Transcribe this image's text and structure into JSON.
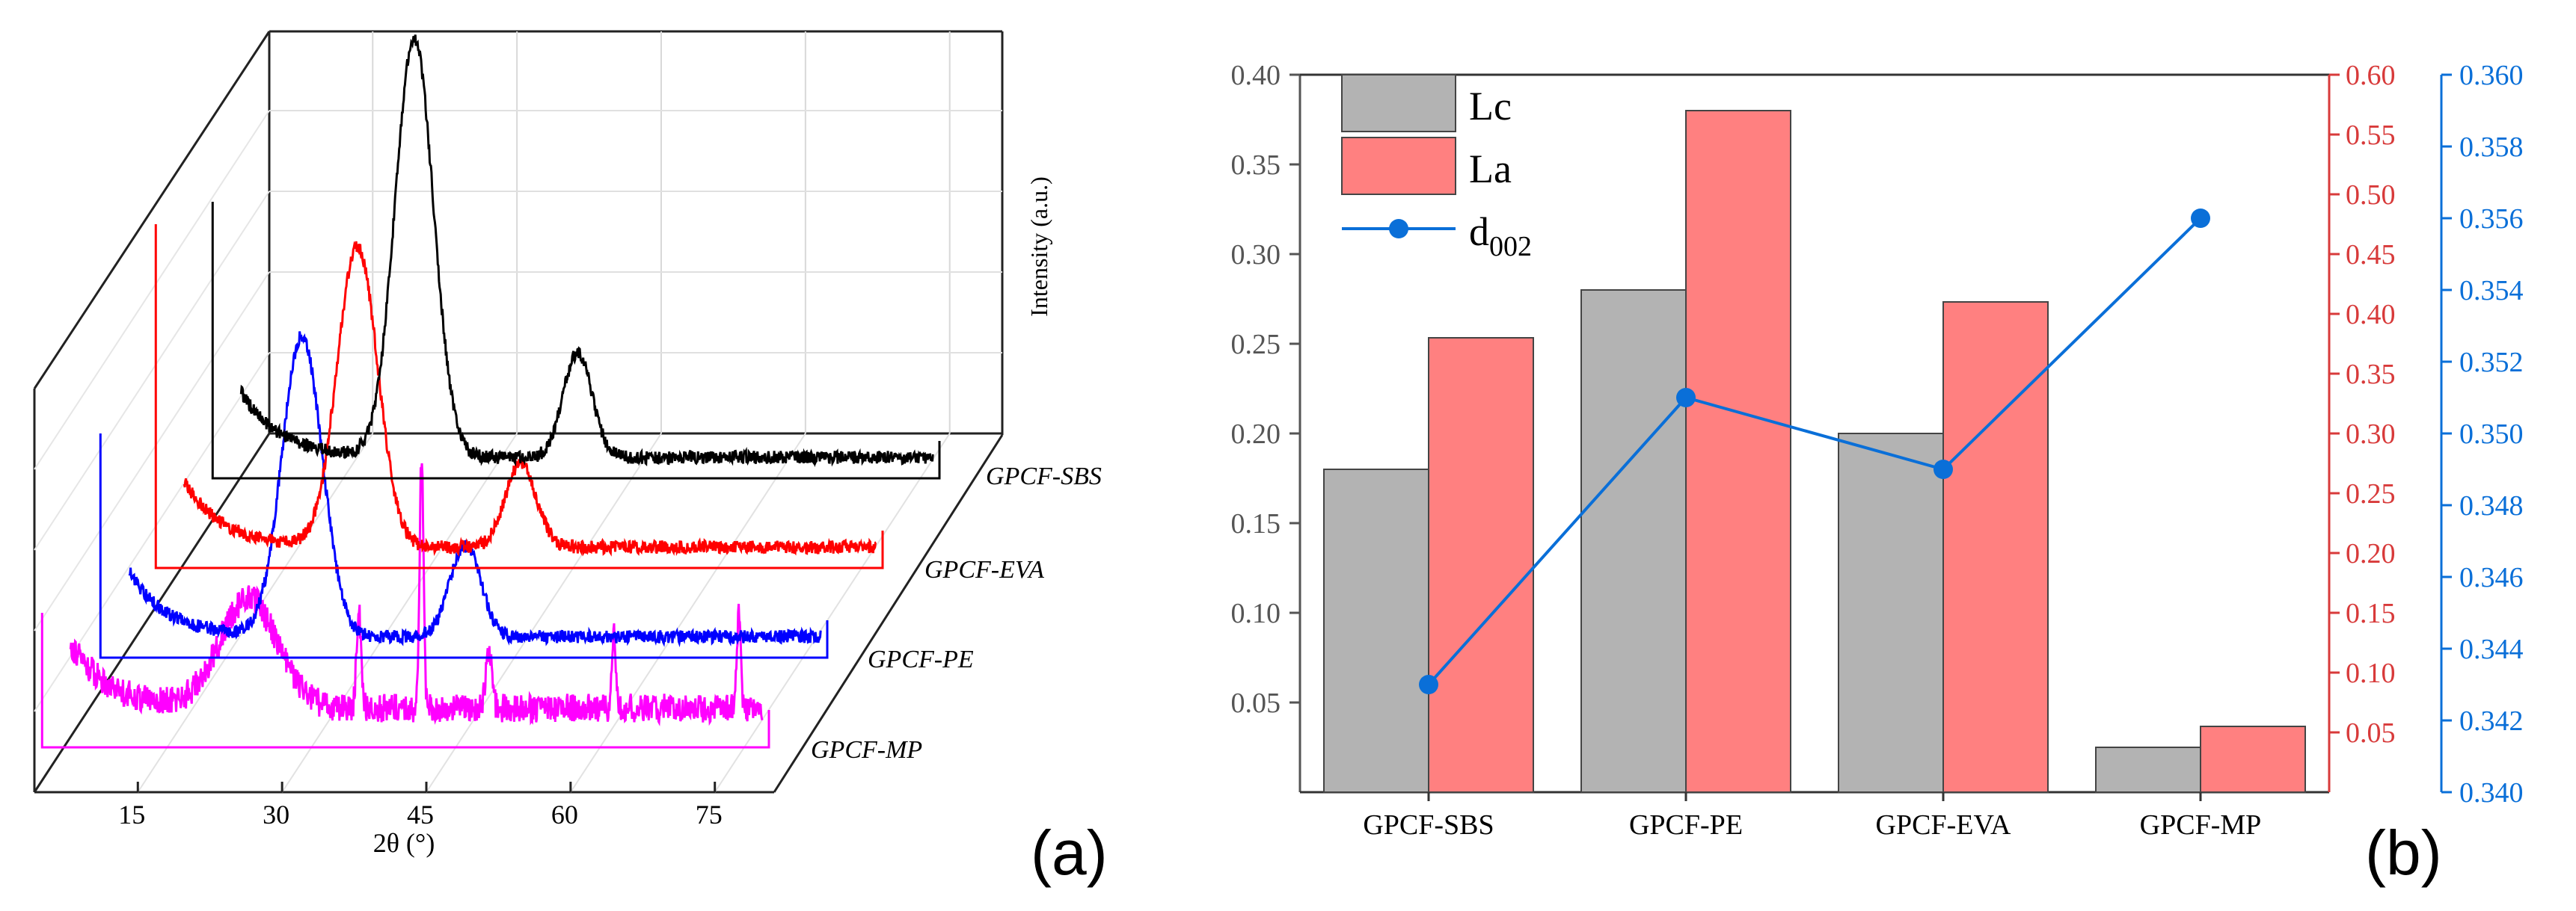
{
  "panel_a_label": "(a)",
  "panel_b_label": "(b)",
  "chart_data": [
    {
      "panel": "(a)",
      "type": "line",
      "title": "",
      "xlabel": "2θ (°)",
      "ylabel": "Intensity (a.u.)",
      "x_ticks": [
        15,
        30,
        45,
        60,
        75
      ],
      "xlim": [
        5,
        85
      ],
      "series": [
        {
          "name": "GPCF-MP",
          "color": "#ff00ff",
          "base": 0.15,
          "noise": 0.055,
          "peaks": [
            [
              26.5,
              0.42,
              3.0
            ],
            [
              38,
              0.35,
              0.25
            ],
            [
              44.5,
              0.95,
              0.2
            ],
            [
              51.5,
              0.22,
              0.3
            ],
            [
              64.5,
              0.28,
              0.2
            ],
            [
              77.5,
              0.38,
              0.2
            ]
          ]
        },
        {
          "name": "GPCF-PE",
          "color": "#0000ff",
          "base": 0.08,
          "noise": 0.025,
          "peaks": [
            [
              26,
              1.15,
              2.1
            ],
            [
              43,
              0.35,
              1.6
            ]
          ]
        },
        {
          "name": "GPCF-EVA",
          "color": "#ff0000",
          "base": 0.08,
          "noise": 0.025,
          "peaks": [
            [
              26,
              1.15,
              2.1
            ],
            [
              43,
              0.32,
              1.6
            ]
          ]
        },
        {
          "name": "GPCF-SBS",
          "color": "#000000",
          "base": 0.08,
          "noise": 0.025,
          "peaks": [
            [
              26,
              1.6,
              2.0
            ],
            [
              43,
              0.4,
              1.5
            ]
          ]
        }
      ]
    },
    {
      "panel": "(b)",
      "type": "bar",
      "title": "",
      "categories": [
        "GPCF-SBS",
        "GPCF-PE",
        "GPCF-EVA",
        "GPCF-MP"
      ],
      "series": [
        {
          "name": "Lc",
          "type": "bar",
          "axis": "left",
          "color": "#b3b3b3",
          "values": [
            0.18,
            0.28,
            0.2,
            0.025
          ]
        },
        {
          "name": "La",
          "type": "bar",
          "axis": "right1",
          "color": "#ff8080",
          "values": [
            0.38,
            0.57,
            0.41,
            0.055
          ]
        },
        {
          "name": "d002",
          "legend_main": "d",
          "legend_sub": "002",
          "type": "line",
          "axis": "right2",
          "color": "#0a6fd8",
          "values": [
            0.343,
            0.351,
            0.349,
            0.356
          ]
        }
      ],
      "left_axis": {
        "range": [
          0.0,
          0.4
        ],
        "ticks": [
          "0.05",
          "0.10",
          "0.15",
          "0.20",
          "0.25",
          "0.30",
          "0.35",
          "0.40"
        ],
        "color": "#555555"
      },
      "right_axis_1": {
        "range": [
          0.0,
          0.6
        ],
        "ticks": [
          "0.05",
          "0.10",
          "0.15",
          "0.20",
          "0.25",
          "0.30",
          "0.35",
          "0.40",
          "0.45",
          "0.50",
          "0.55",
          "0.60"
        ],
        "color": "#d83a3a"
      },
      "right_axis_2": {
        "range": [
          0.34,
          0.36
        ],
        "ticks": [
          "0.340",
          "0.342",
          "0.344",
          "0.346",
          "0.348",
          "0.350",
          "0.352",
          "0.354",
          "0.356",
          "0.358",
          "0.360"
        ],
        "color": "#0a6fd8"
      },
      "legend_position": "top-left"
    }
  ]
}
